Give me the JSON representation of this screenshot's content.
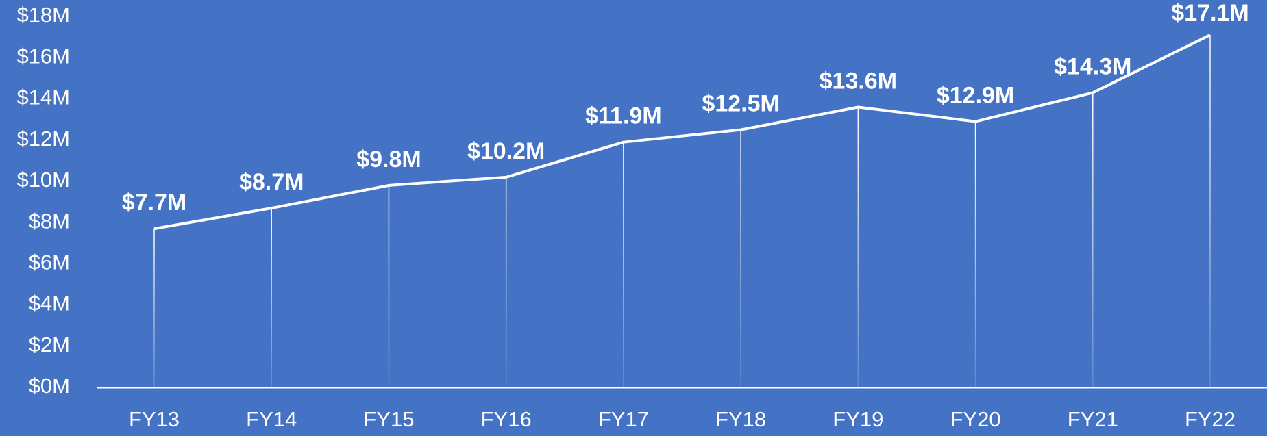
{
  "chart_data": {
    "type": "line",
    "categories": [
      "FY13",
      "FY14",
      "FY15",
      "FY16",
      "FY17",
      "FY18",
      "FY19",
      "FY20",
      "FY21",
      "FY22"
    ],
    "values": [
      7.7,
      8.7,
      9.8,
      10.2,
      11.9,
      12.5,
      13.6,
      12.9,
      14.3,
      17.1
    ],
    "value_labels": [
      "$7.7M",
      "$8.7M",
      "$9.8M",
      "$10.2M",
      "$11.9M",
      "$12.5M",
      "$13.6M",
      "$12.9M",
      "$14.3M",
      "$17.1M"
    ],
    "color": "#ffffff",
    "background": "#4472c4",
    "ylim": [
      0,
      18
    ],
    "yticks": [
      {
        "value": 0,
        "label": "$0M"
      },
      {
        "value": 2,
        "label": "$2M"
      },
      {
        "value": 4,
        "label": "$4M"
      },
      {
        "value": 6,
        "label": "$6M"
      },
      {
        "value": 8,
        "label": "$8M"
      },
      {
        "value": 10,
        "label": "$10M"
      },
      {
        "value": 12,
        "label": "$12M"
      },
      {
        "value": 14,
        "label": "$14M"
      },
      {
        "value": 16,
        "label": "$16M"
      },
      {
        "value": 18,
        "label": "$18M"
      }
    ],
    "drop_lines": true
  }
}
